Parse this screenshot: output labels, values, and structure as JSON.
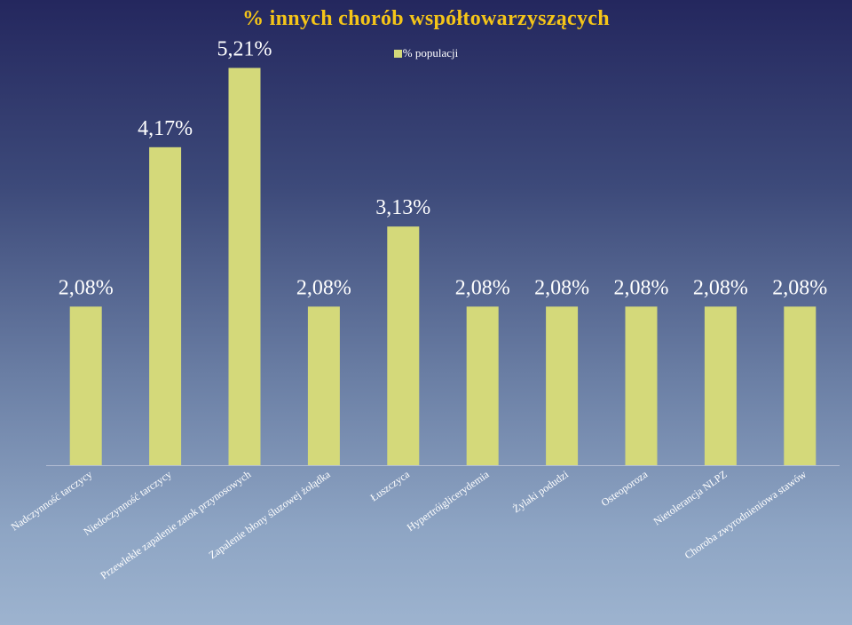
{
  "chart_data": {
    "type": "bar",
    "title": "% innych chorób współtowarzyszących",
    "legend": "% populacji",
    "series": [
      {
        "name": "% populacji",
        "values": [
          2.08,
          4.17,
          5.21,
          2.08,
          3.13,
          2.08,
          2.08,
          2.08,
          2.08,
          2.08
        ],
        "labels": [
          "2,08%",
          "4,17%",
          "5,21%",
          "2,08%",
          "3,13%",
          "2,08%",
          "2,08%",
          "2,08%",
          "2,08%",
          "2,08%"
        ]
      }
    ],
    "categories": [
      "Nadczynność tarczycy",
      "Niedoczynność tarczycy",
      "Przewlekłe zapalenie zatok przynosowych",
      "Zapalenie błony śluzowej żołądka",
      "Łuszczyca",
      "Hypertróiglicerydemia",
      "Żylaki podudzi",
      "Osteoporoza",
      "Nietolerancja NLPZ",
      "Choroba zwyrodnieniowa stawów"
    ],
    "ylim": [
      0,
      5.6
    ],
    "colors": {
      "bar": "#d4d97a",
      "title": "#f5c518",
      "text": "#ffffff"
    }
  }
}
